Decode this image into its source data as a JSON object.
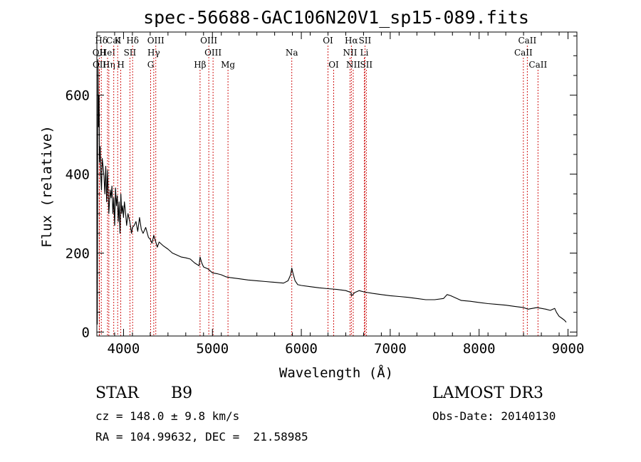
{
  "chart_data": {
    "type": "line",
    "title": "spec-56688-GAC106N20V1_sp15-089.fits",
    "xlabel": "Wavelength (Å)",
    "ylabel": "Flux (relative)",
    "xlim": [
      3700,
      9100
    ],
    "ylim": [
      -10,
      760
    ],
    "xticks": [
      4000,
      5000,
      6000,
      7000,
      8000,
      9000
    ],
    "xtick_labels": [
      "4000",
      "5000",
      "6000",
      "7000",
      "8000",
      "9000"
    ],
    "yticks": [
      0,
      200,
      400,
      600
    ],
    "ytick_labels": [
      "0",
      "200",
      "400",
      "600"
    ],
    "series": [
      {
        "name": "flux",
        "x": [
          3700,
          3705,
          3712,
          3718,
          3725,
          3730,
          3738,
          3745,
          3752,
          3760,
          3770,
          3780,
          3790,
          3800,
          3810,
          3820,
          3835,
          3850,
          3860,
          3870,
          3880,
          3890,
          3900,
          3910,
          3920,
          3930,
          3940,
          3950,
          3960,
          3970,
          3980,
          3990,
          4000,
          4010,
          4020,
          4035,
          4050,
          4070,
          4090,
          4100,
          4120,
          4140,
          4160,
          4180,
          4200,
          4220,
          4250,
          4280,
          4300,
          4320,
          4340,
          4360,
          4380,
          4400,
          4450,
          4500,
          4550,
          4600,
          4650,
          4700,
          4750,
          4800,
          4850,
          4861,
          4880,
          4900,
          4950,
          5000,
          5050,
          5100,
          5150,
          5200,
          5300,
          5400,
          5500,
          5600,
          5700,
          5800,
          5850,
          5880,
          5893,
          5905,
          5930,
          5960,
          6000,
          6100,
          6200,
          6300,
          6400,
          6500,
          6560,
          6563,
          6580,
          6600,
          6650,
          6700,
          6750,
          6800,
          6900,
          7000,
          7100,
          7200,
          7300,
          7400,
          7500,
          7600,
          7640,
          7680,
          7700,
          7800,
          7900,
          8000,
          8100,
          8200,
          8300,
          8400,
          8500,
          8550,
          8600,
          8650,
          8700,
          8750,
          8800,
          8850,
          8870,
          8900,
          8930,
          8960,
          8980
        ],
        "y": [
          130,
          20,
          690,
          520,
          600,
          430,
          470,
          390,
          360,
          440,
          420,
          395,
          350,
          420,
          330,
          410,
          300,
          360,
          340,
          370,
          300,
          340,
          270,
          365,
          320,
          345,
          280,
          330,
          250,
          350,
          300,
          320,
          290,
          330,
          310,
          270,
          300,
          280,
          250,
          265,
          270,
          280,
          255,
          290,
          260,
          250,
          265,
          240,
          235,
          225,
          245,
          230,
          215,
          228,
          218,
          210,
          200,
          195,
          190,
          188,
          185,
          175,
          168,
          190,
          175,
          165,
          160,
          150,
          148,
          145,
          140,
          138,
          135,
          132,
          130,
          128,
          126,
          124,
          130,
          145,
          162,
          150,
          130,
          120,
          118,
          115,
          112,
          110,
          108,
          105,
          100,
          92,
          95,
          100,
          105,
          102,
          100,
          98,
          95,
          92,
          90,
          88,
          85,
          82,
          82,
          85,
          95,
          92,
          90,
          80,
          78,
          75,
          72,
          70,
          68,
          65,
          62,
          58,
          60,
          62,
          60,
          58,
          55,
          60,
          50,
          40,
          35,
          30,
          25
        ]
      }
    ],
    "lines": [
      {
        "label": "Hδ",
        "x": 3750,
        "row": 0
      },
      {
        "label": "OII",
        "x": 3727,
        "row": 1
      },
      {
        "label": "HeI",
        "x": 3820,
        "row": 1
      },
      {
        "label": "OII",
        "x": 3729,
        "row": 2
      },
      {
        "label": "Hη",
        "x": 3835,
        "row": 2
      },
      {
        "label": "K",
        "x": 3934,
        "row": 0
      },
      {
        "label": "CaI",
        "x": 3890,
        "row": 0
      },
      {
        "label": "SII",
        "x": 4072,
        "row": 1
      },
      {
        "label": "H",
        "x": 3969,
        "row": 2
      },
      {
        "label": "Hδ",
        "x": 4102,
        "row": 0
      },
      {
        "label": "OIII",
        "x": 4363,
        "row": 0
      },
      {
        "label": "Hγ",
        "x": 4340,
        "row": 1
      },
      {
        "label": "G",
        "x": 4305,
        "row": 2
      },
      {
        "label": "OIII",
        "x": 4959,
        "row": 0
      },
      {
        "label": "OIII",
        "x": 5007,
        "row": 1
      },
      {
        "label": "Hβ",
        "x": 4861,
        "row": 2
      },
      {
        "label": "Mg",
        "x": 5175,
        "row": 2
      },
      {
        "label": "Na",
        "x": 5893,
        "row": 1
      },
      {
        "label": "OI",
        "x": 6300,
        "row": 0
      },
      {
        "label": "OI",
        "x": 6364,
        "row": 2
      },
      {
        "label": "Hα",
        "x": 6563,
        "row": 0
      },
      {
        "label": "SII",
        "x": 6716,
        "row": 0
      },
      {
        "label": "NII",
        "x": 6548,
        "row": 1
      },
      {
        "label": "Li",
        "x": 6708,
        "row": 1
      },
      {
        "label": "NII",
        "x": 6584,
        "row": 2
      },
      {
        "label": "SII",
        "x": 6731,
        "row": 2
      },
      {
        "label": "CaII",
        "x": 8542,
        "row": 0
      },
      {
        "label": "CaII",
        "x": 8498,
        "row": 1
      },
      {
        "label": "CaII",
        "x": 8662,
        "row": 2
      }
    ]
  },
  "info": {
    "class_label": "STAR",
    "subclass_label": "B9",
    "survey": "LAMOST DR3",
    "cz": "cz = 148.0 ± 9.8 km/s",
    "obs_date": "Obs-Date: 20140130",
    "radec": "RA = 104.99632, DEC =  21.58985"
  }
}
